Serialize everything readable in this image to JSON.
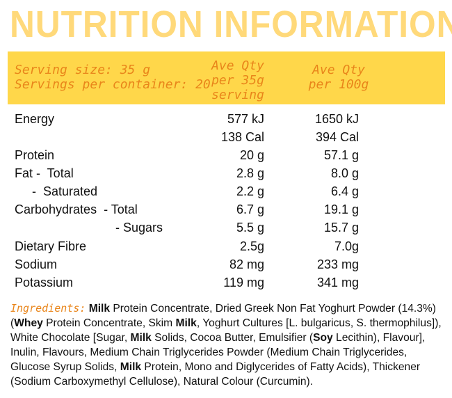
{
  "title": "NUTRITION INFORMATION",
  "header": {
    "serving_size": "Serving size: 35 g",
    "servings_per_container": "Servings per container: 20",
    "col1_line1": "Ave Qty",
    "col1_line2": "per 35g",
    "col1_line3": "serving",
    "col2_line1": "Ave Qty",
    "col2_line2": "per 100g"
  },
  "rows": [
    {
      "label": "Energy",
      "v1": "577 kJ",
      "v2": "1650 kJ"
    },
    {
      "label": "",
      "v1": "138 Cal",
      "v2": "394 Cal"
    },
    {
      "label": "Protein",
      "v1": "20 g",
      "v2": "57.1 g"
    },
    {
      "label": "Fat -  Total",
      "v1": "2.8 g",
      "v2": "8.0 g"
    },
    {
      "label": "     -  Saturated",
      "v1": "2.2 g",
      "v2": "6.4 g"
    },
    {
      "label": "Carbohydrates  - Total",
      "v1": "6.7 g",
      "v2": "19.1 g"
    },
    {
      "label": "                             - Sugars",
      "v1": "5.5 g",
      "v2": "15.7 g"
    },
    {
      "label": "Dietary Fibre",
      "v1": "2.5g",
      "v2": "7.0g"
    },
    {
      "label": "Sodium",
      "v1": "82 mg",
      "v2": "233 mg"
    },
    {
      "label": "Potassium",
      "v1": "119 mg",
      "v2": "341 mg"
    }
  ],
  "ingredients": {
    "label": "Ingredients:",
    "parts": [
      {
        "t": " ",
        "b": false
      },
      {
        "t": "Milk",
        "b": true
      },
      {
        "t": " Protein Concentrate, Dried Greek Non Fat Yoghurt Powder (14.3%) (",
        "b": false
      },
      {
        "t": "Whey",
        "b": true
      },
      {
        "t": " Protein Concentrate, Skim ",
        "b": false
      },
      {
        "t": "Milk",
        "b": true
      },
      {
        "t": ", Yoghurt Cultures [L. bulgaricus, S. thermophilus]), White Chocolate [Sugar, ",
        "b": false
      },
      {
        "t": "Milk",
        "b": true
      },
      {
        "t": " Solids, Cocoa Butter, Emulsifier (",
        "b": false
      },
      {
        "t": "Soy",
        "b": true
      },
      {
        "t": " Lecithin), Flavour], Inulin, Flavours, Medium Chain Triglycerides Powder (Medium Chain Triglycerides, Glucose Syrup Solids, ",
        "b": false
      },
      {
        "t": "Milk",
        "b": true
      },
      {
        "t": " Protein, Mono and Diglycerides of Fatty Acids), Thickener (Sodium Carboxymethyl Cellulose), Natural Colour (Curcumin).",
        "b": false
      }
    ]
  }
}
